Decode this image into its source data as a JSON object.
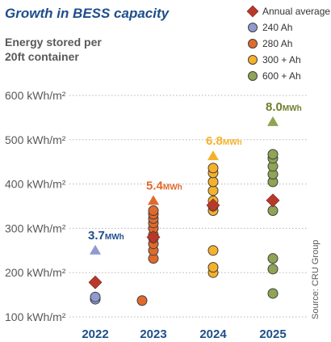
{
  "chart_data": {
    "type": "scatter",
    "title": "Growth in BESS capacity",
    "subtitle_lines": [
      "Energy stored per",
      "20ft container"
    ],
    "ytick_labels": [
      "100 kWh/m²",
      "200 kWh/m²",
      "300 kWh/m²",
      "400 kWh/m²",
      "500 kWh/m²",
      "600 kWh/m²"
    ],
    "yticks": [
      100,
      200,
      300,
      400,
      500,
      600
    ],
    "ylim": [
      90,
      640
    ],
    "categories": [
      "2022",
      "2023",
      "2024",
      "2025"
    ],
    "grid": "horizontal dotted",
    "legend_position": "top-right",
    "series": [
      {
        "name": "Annual average",
        "marker": "diamond",
        "color": "#b8392b",
        "points": [
          {
            "x": "2022",
            "y": 178
          },
          {
            "x": "2023",
            "y": 280
          },
          {
            "x": "2024",
            "y": 352
          },
          {
            "x": "2025",
            "y": 363
          }
        ]
      },
      {
        "name": "240 Ah",
        "marker": "circle",
        "color": "#8e9ad0",
        "points": [
          {
            "x": "2022",
            "y": 140
          },
          {
            "x": "2022",
            "y": 145
          }
        ]
      },
      {
        "name": "280 Ah",
        "marker": "circle",
        "color": "#e06a2a",
        "points": [
          {
            "x": "2023",
            "y": 137,
            "offset": -1
          },
          {
            "x": "2023",
            "y": 232
          },
          {
            "x": "2023",
            "y": 250
          },
          {
            "x": "2023",
            "y": 265
          },
          {
            "x": "2023",
            "y": 278
          },
          {
            "x": "2023",
            "y": 285
          },
          {
            "x": "2023",
            "y": 300
          },
          {
            "x": "2023",
            "y": 312
          },
          {
            "x": "2023",
            "y": 322
          },
          {
            "x": "2023",
            "y": 332
          },
          {
            "x": "2023",
            "y": 340
          }
        ]
      },
      {
        "name": "300 + Ah",
        "marker": "circle",
        "color": "#f6b12a",
        "points": [
          {
            "x": "2024",
            "y": 200
          },
          {
            "x": "2024",
            "y": 212
          },
          {
            "x": "2024",
            "y": 250
          },
          {
            "x": "2024",
            "y": 340
          },
          {
            "x": "2024",
            "y": 350
          },
          {
            "x": "2024",
            "y": 362
          },
          {
            "x": "2024",
            "y": 385
          },
          {
            "x": "2024",
            "y": 405
          },
          {
            "x": "2024",
            "y": 425
          },
          {
            "x": "2024",
            "y": 436
          }
        ]
      },
      {
        "name": "600 + Ah",
        "marker": "circle",
        "color": "#8fa454",
        "points": [
          {
            "x": "2025",
            "y": 153
          },
          {
            "x": "2025",
            "y": 208
          },
          {
            "x": "2025",
            "y": 232
          },
          {
            "x": "2025",
            "y": 340
          },
          {
            "x": "2025",
            "y": 405
          },
          {
            "x": "2025",
            "y": 422
          },
          {
            "x": "2025",
            "y": 440
          },
          {
            "x": "2025",
            "y": 458
          },
          {
            "x": "2025",
            "y": 467
          }
        ]
      }
    ],
    "annotations": [
      {
        "x": "2022",
        "y": 250,
        "color": "#8e9ad0",
        "label": "3.7",
        "unit": "MWh",
        "label_color": "#1f4e8c"
      },
      {
        "x": "2023",
        "y": 362,
        "color": "#e06a2a",
        "label": "5.4",
        "unit": "MWh",
        "label_color": "#e06a2a"
      },
      {
        "x": "2024",
        "y": 463,
        "color": "#f6b12a",
        "label": "6.8",
        "unit": "MWh",
        "label_color": "#f6b12a"
      },
      {
        "x": "2025",
        "y": 540,
        "color": "#8fa454",
        "label": "8.0",
        "unit": "MWh",
        "label_color": "#6e7f2b"
      }
    ],
    "source": "Source: CRU Group",
    "colors": {
      "title": "#1f4e8c",
      "text": "#58595b",
      "axis_text": "#58595b"
    }
  }
}
